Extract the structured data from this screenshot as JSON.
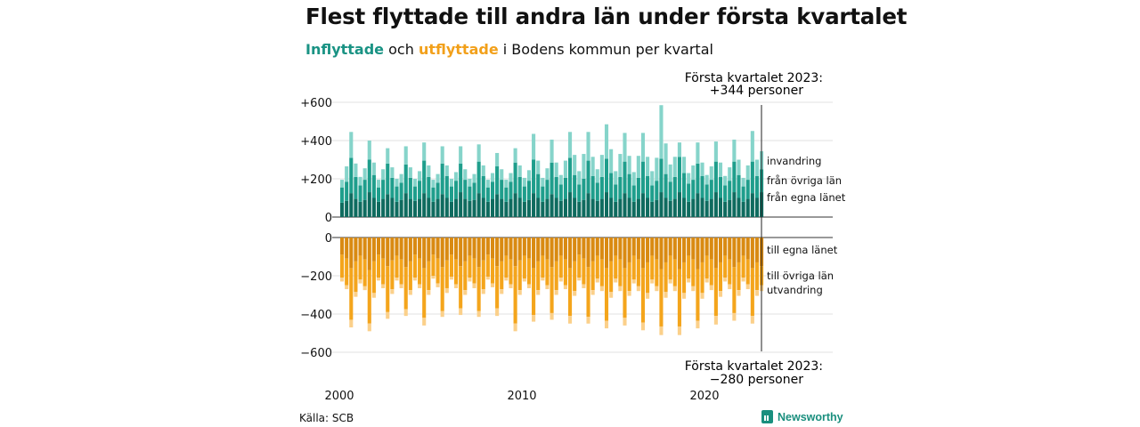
{
  "title": "Flest flyttade till andra län under första kvartalet",
  "subtitle": {
    "in_word": "Inflyttade",
    "and_word": " och ",
    "out_word": "utflyttade",
    "rest": " i Bodens kommun per kvartal"
  },
  "annotations": {
    "top_line1": "Första kvartalet 2023:",
    "top_line2": "+344 personer",
    "bottom_line1": "Första kvartalet 2023:",
    "bottom_line2": "−280 personer"
  },
  "source": "Källa: SCB",
  "brand": "Newsworthy",
  "colors": {
    "in_own_county": "#0f6b5f",
    "in_other_counties": "#1f9e8c",
    "in_immigration": "#86d4ca",
    "out_own_county": "#d98a12",
    "out_other_counties": "#f4a51c",
    "out_emigration": "#fbd08a"
  },
  "chart_data": {
    "type": "bar",
    "stacked": true,
    "x_start": "2000 Q1",
    "x_end": "2023 Q1",
    "x_ticks": [
      "2000",
      "2010",
      "2020"
    ],
    "y_ticks_top": [
      "+600",
      "+400",
      "+200",
      "0"
    ],
    "y_ticks_bottom": [
      "0",
      "−200",
      "−400",
      "−600"
    ],
    "ylim": [
      -600,
      600
    ],
    "grid": true,
    "series_labels": {
      "in": [
        "invandring",
        "från övriga län",
        "från egna länet"
      ],
      "out": [
        "till egna länet",
        "till övriga län",
        "utvandring"
      ]
    },
    "series": [
      {
        "name": "från egna länet",
        "values": [
          75,
          85,
          125,
          95,
          80,
          90,
          130,
          100,
          80,
          95,
          120,
          100,
          80,
          90,
          125,
          95,
          85,
          95,
          125,
          100,
          80,
          95,
          120,
          100,
          80,
          95,
          130,
          95,
          85,
          90,
          125,
          100,
          80,
          95,
          120,
          95,
          80,
          95,
          125,
          100,
          80,
          90,
          125,
          100,
          80,
          95,
          120,
          100,
          85,
          95,
          130,
          100,
          80,
          90,
          125,
          95,
          85,
          95,
          130,
          100,
          80,
          95,
          125,
          100,
          80,
          95,
          125,
          100,
          80,
          90,
          130,
          100,
          85,
          95,
          130,
          100,
          80,
          95,
          125,
          100,
          85,
          95,
          130,
          100,
          80,
          90,
          130,
          100,
          80,
          95,
          125,
          100,
          130
        ]
      },
      {
        "name": "från övriga län",
        "values": [
          80,
          100,
          185,
          115,
          85,
          105,
          170,
          120,
          75,
          100,
          160,
          105,
          80,
          90,
          150,
          110,
          75,
          95,
          170,
          110,
          75,
          85,
          160,
          115,
          80,
          95,
          150,
          100,
          75,
          90,
          165,
          115,
          75,
          90,
          145,
          100,
          75,
          90,
          160,
          110,
          80,
          100,
          175,
          125,
          80,
          100,
          165,
          110,
          85,
          110,
          180,
          120,
          90,
          110,
          170,
          120,
          95,
          115,
          175,
          130,
          90,
          115,
          165,
          125,
          85,
          110,
          165,
          115,
          85,
          100,
          175,
          125,
          100,
          115,
          185,
          130,
          95,
          100,
          155,
          115,
          85,
          100,
          160,
          110,
          85,
          100,
          160,
          120,
          80,
          100,
          165,
          115,
          120
        ]
      },
      {
        "name": "invandring",
        "values": [
          40,
          80,
          135,
          70,
          45,
          60,
          100,
          65,
          40,
          55,
          80,
          55,
          40,
          45,
          95,
          55,
          40,
          50,
          95,
          60,
          40,
          45,
          90,
          55,
          40,
          45,
          90,
          55,
          40,
          45,
          90,
          55,
          40,
          45,
          70,
          55,
          40,
          45,
          75,
          60,
          45,
          55,
          135,
          70,
          45,
          60,
          120,
          75,
          50,
          90,
          135,
          105,
          70,
          130,
          150,
          100,
          70,
          115,
          180,
          125,
          70,
          120,
          150,
          95,
          70,
          115,
          150,
          100,
          75,
          120,
          280,
          160,
          90,
          105,
          75,
          85,
          55,
          75,
          110,
          70,
          50,
          70,
          105,
          75,
          50,
          70,
          115,
          80,
          45,
          75,
          160,
          85,
          94
        ]
      },
      {
        "name": "till egna länet",
        "values": [
          -90,
          -110,
          -160,
          -125,
          -95,
          -115,
          -170,
          -125,
          -90,
          -110,
          -150,
          -120,
          -95,
          -115,
          -155,
          -125,
          -90,
          -110,
          -160,
          -125,
          -90,
          -110,
          -155,
          -120,
          -90,
          -115,
          -150,
          -125,
          -95,
          -110,
          -155,
          -120,
          -90,
          -110,
          -150,
          -125,
          -95,
          -115,
          -150,
          -120,
          -95,
          -110,
          -160,
          -125,
          -95,
          -115,
          -155,
          -125,
          -95,
          -115,
          -160,
          -125,
          -90,
          -110,
          -155,
          -125,
          -95,
          -115,
          -160,
          -125,
          -95,
          -115,
          -160,
          -130,
          -95,
          -115,
          -160,
          -130,
          -95,
          -115,
          -165,
          -130,
          -95,
          -115,
          -165,
          -130,
          -95,
          -115,
          -165,
          -130,
          -95,
          -115,
          -160,
          -130,
          -95,
          -115,
          -155,
          -130,
          -95,
          -115,
          -160,
          -130,
          -150
        ]
      },
      {
        "name": "till övriga län",
        "values": [
          -120,
          -140,
          -270,
          -160,
          -125,
          -140,
          -280,
          -165,
          -120,
          -135,
          -240,
          -150,
          -115,
          -130,
          -220,
          -150,
          -120,
          -135,
          -260,
          -150,
          -110,
          -130,
          -230,
          -145,
          -115,
          -130,
          -220,
          -150,
          -115,
          -130,
          -230,
          -150,
          -115,
          -130,
          -220,
          -145,
          -115,
          -130,
          -300,
          -155,
          -120,
          -135,
          -245,
          -150,
          -115,
          -135,
          -240,
          -150,
          -115,
          -135,
          -250,
          -155,
          -120,
          -135,
          -260,
          -150,
          -120,
          -140,
          -275,
          -160,
          -120,
          -140,
          -260,
          -150,
          -125,
          -140,
          -285,
          -160,
          -125,
          -140,
          -300,
          -155,
          -125,
          -140,
          -300,
          -160,
          -120,
          -140,
          -270,
          -160,
          -120,
          -135,
          -250,
          -150,
          -115,
          -130,
          -240,
          -145,
          -115,
          -130,
          -250,
          -145,
          -100
        ]
      },
      {
        "name": "utvandring",
        "values": [
          -20,
          -20,
          -40,
          -25,
          -20,
          -20,
          -40,
          -25,
          -15,
          -20,
          -35,
          -25,
          -15,
          -20,
          -35,
          -25,
          -15,
          -20,
          -40,
          -25,
          -15,
          -20,
          -30,
          -25,
          -15,
          -20,
          -35,
          -25,
          -20,
          -25,
          -30,
          -25,
          -15,
          -20,
          -40,
          -25,
          -15,
          -20,
          -40,
          -25,
          -15,
          -20,
          -35,
          -25,
          -15,
          -20,
          -35,
          -25,
          -20,
          -20,
          -40,
          -25,
          -15,
          -20,
          -35,
          -25,
          -20,
          -25,
          -40,
          -30,
          -20,
          -25,
          -40,
          -25,
          -20,
          -25,
          -40,
          -30,
          -20,
          -25,
          -45,
          -30,
          -20,
          -25,
          -45,
          -30,
          -20,
          -25,
          -40,
          -30,
          -20,
          -25,
          -45,
          -30,
          -20,
          -25,
          -40,
          -30,
          -20,
          -25,
          -40,
          -30,
          -30
        ]
      }
    ]
  }
}
